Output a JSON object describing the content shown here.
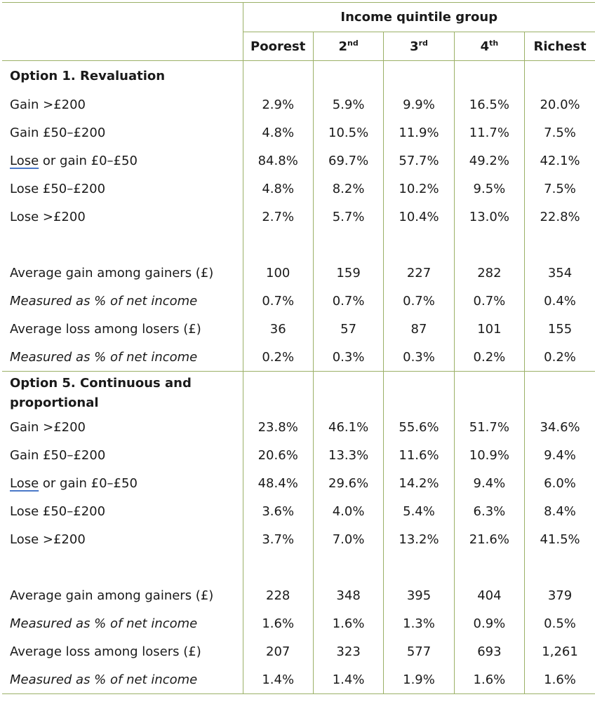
{
  "header": {
    "group_title": "Income quintile group",
    "columns": [
      {
        "base": "Poorest",
        "sup": ""
      },
      {
        "base": "2",
        "sup": "nd"
      },
      {
        "base": "3",
        "sup": "rd"
      },
      {
        "base": "4",
        "sup": "th"
      },
      {
        "base": "Richest",
        "sup": ""
      }
    ]
  },
  "sections": [
    {
      "title": "Option 1. Revaluation",
      "rows": [
        {
          "label": "Gain >£200",
          "values": [
            "2.9%",
            "5.9%",
            "9.9%",
            "16.5%",
            "20.0%"
          ]
        },
        {
          "label": "Gain £50–£200",
          "values": [
            "4.8%",
            "10.5%",
            "11.9%",
            "11.7%",
            "7.5%"
          ]
        },
        {
          "label_first": "Lose",
          "label_rest": " or gain £0–£50",
          "values": [
            "84.8%",
            "69.7%",
            "57.7%",
            "49.2%",
            "42.1%"
          ]
        },
        {
          "label": "Lose £50–£200",
          "values": [
            "4.8%",
            "8.2%",
            "10.2%",
            "9.5%",
            "7.5%"
          ]
        },
        {
          "label": "Lose >£200",
          "values": [
            "2.7%",
            "5.7%",
            "10.4%",
            "13.0%",
            "22.8%"
          ]
        }
      ],
      "summary": [
        {
          "label": "Average gain among gainers (£)",
          "italic": false,
          "values": [
            "100",
            "159",
            "227",
            "282",
            "354"
          ]
        },
        {
          "label": "Measured as % of net income",
          "italic": true,
          "values": [
            "0.7%",
            "0.7%",
            "0.7%",
            "0.7%",
            "0.4%"
          ]
        },
        {
          "label": "Average loss among losers (£)",
          "italic": false,
          "values": [
            "36",
            "57",
            "87",
            "101",
            "155"
          ]
        },
        {
          "label": "Measured as % of net income",
          "italic": true,
          "values": [
            "0.2%",
            "0.3%",
            "0.3%",
            "0.2%",
            "0.2%"
          ]
        }
      ]
    },
    {
      "title": "Option 5. Continuous and proportional",
      "rows": [
        {
          "label": "Gain >£200",
          "values": [
            "23.8%",
            "46.1%",
            "55.6%",
            "51.7%",
            "34.6%"
          ]
        },
        {
          "label": "Gain £50–£200",
          "values": [
            "20.6%",
            "13.3%",
            "11.6%",
            "10.9%",
            "9.4%"
          ]
        },
        {
          "label_first": "Lose",
          "label_rest": " or gain £0–£50",
          "values": [
            "48.4%",
            "29.6%",
            "14.2%",
            "9.4%",
            "6.0%"
          ]
        },
        {
          "label": "Lose £50–£200",
          "values": [
            "3.6%",
            "4.0%",
            "5.4%",
            "6.3%",
            "8.4%"
          ]
        },
        {
          "label": "Lose >£200",
          "values": [
            "3.7%",
            "7.0%",
            "13.2%",
            "21.6%",
            "41.5%"
          ]
        }
      ],
      "summary": [
        {
          "label": "Average gain among gainers (£)",
          "italic": false,
          "values": [
            "228",
            "348",
            "395",
            "404",
            "379"
          ]
        },
        {
          "label": "Measured as % of net income",
          "italic": true,
          "values": [
            "1.6%",
            "1.6%",
            "1.3%",
            "0.9%",
            "0.5%"
          ]
        },
        {
          "label": "Average loss among losers (£)",
          "italic": false,
          "values": [
            "207",
            "323",
            "577",
            "693",
            "1,261"
          ]
        },
        {
          "label": "Measured as % of net income",
          "italic": true,
          "values": [
            "1.4%",
            "1.4%",
            "1.9%",
            "1.6%",
            "1.6%"
          ]
        }
      ]
    }
  ]
}
